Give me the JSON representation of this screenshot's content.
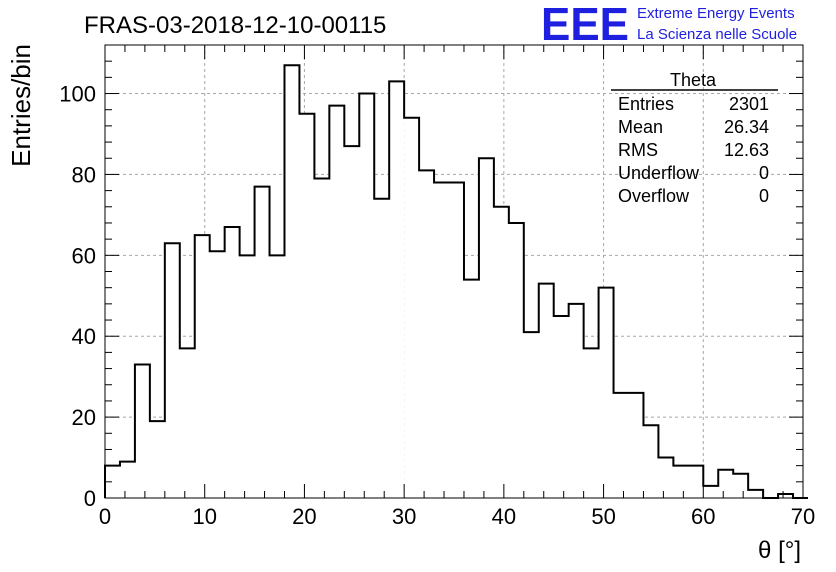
{
  "header": {
    "run_title": "FRAS-03-2018-12-10-00115",
    "logo_text": "EEE",
    "logo_line1": "Extreme Energy Events",
    "logo_line2": "La Scienza nelle Scuole",
    "logo_color": "#1f1fe0"
  },
  "stats": {
    "name": "Theta",
    "rows": [
      {
        "label": "Entries",
        "value": "2301"
      },
      {
        "label": "Mean",
        "value": "26.34"
      },
      {
        "label": "RMS",
        "value": "12.63"
      },
      {
        "label": "Underflow",
        "value": "0"
      },
      {
        "label": "Overflow",
        "value": "0"
      }
    ]
  },
  "chart_data": {
    "type": "bar",
    "title": "FRAS-03-2018-12-10-00115",
    "xlabel": "θ [°]",
    "ylabel": "Entries/bin",
    "xlim": [
      0,
      70
    ],
    "ylim": [
      0,
      112
    ],
    "x_ticks": [
      0,
      10,
      20,
      30,
      40,
      50,
      60,
      70
    ],
    "y_ticks": [
      0,
      20,
      40,
      60,
      80,
      100
    ],
    "grid": true,
    "bin_width": 1.5,
    "bin_start": 0,
    "values": [
      8,
      9,
      33,
      19,
      63,
      37,
      65,
      61,
      67,
      60,
      77,
      60,
      107,
      95,
      79,
      97,
      87,
      100,
      74,
      103,
      94,
      81,
      78,
      78,
      54,
      84,
      72,
      68,
      41,
      53,
      45,
      48,
      37,
      52,
      26,
      26,
      18,
      10,
      8,
      8,
      3,
      7,
      6,
      2,
      0,
      1,
      0
    ]
  }
}
